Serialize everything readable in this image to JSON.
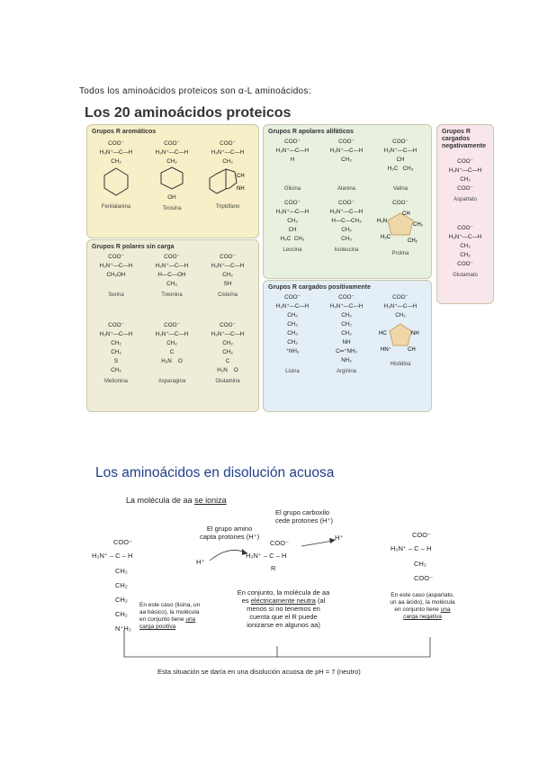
{
  "intro": "Todos los aminoácidos proteicos son α-L aminoácidos:",
  "figure1": {
    "title": "Los 20 aminoácidos proteicos",
    "groups": {
      "aromatic": {
        "title": "Grupos R aromáticos",
        "names": [
          "Fenilalanina",
          "Tirosina",
          "Triptófano"
        ]
      },
      "polar": {
        "title": "Grupos R polares sin carga",
        "names": [
          "Serina",
          "Treonina",
          "Cisteína",
          "Metionina",
          "Asparagina",
          "Glutamina"
        ]
      },
      "apolar": {
        "title": "Grupos R apolares alifáticos",
        "names": [
          "Glicina",
          "Alanina",
          "Valina",
          "Leucina",
          "Isoleucina",
          "Prolina"
        ]
      },
      "positive": {
        "title": "Grupos R cargados positivamente",
        "names": [
          "Lisina",
          "Arginina",
          "Histidina"
        ]
      },
      "negative": {
        "title": "Grupos R cargados negativamente",
        "names": [
          "Aspartato",
          "Glutamato"
        ]
      }
    },
    "formula": {
      "coo": "COO⁻",
      "amine": "H₃N⁺—C—H"
    }
  },
  "figure2": {
    "title": "Los aminoácidos en disolución acuosa",
    "subtitle_prefix": "La molécula de aa ",
    "subtitle_emph": "se ioniza",
    "carboxyl_label": "El grupo carboxilo\ncede protones (H⁺)",
    "amino_label": "El grupo amino\ncapta protones (H⁺)",
    "h_plus": "H⁺",
    "center_R": "R",
    "left_coo": "COO⁻",
    "left_amine": "H₃N⁺ – C – H",
    "left_chain": [
      "CH₂",
      "CH₂",
      "CH₂",
      "CH₂",
      "N⁺H₃"
    ],
    "right_coo": "COO⁻",
    "right_amine": "H₃N⁺ – C – H",
    "right_chain": [
      "CH₂",
      "COO⁻"
    ],
    "note_left": {
      "text": "En este caso (lisina, un aa básico), la molécula en conjunto tiene ",
      "emph": "una carga positiva"
    },
    "note_center": {
      "pre": "En conjunto, la molécula de aa es ",
      "emph1": "eléctricamente neutra",
      "post": " (al menos si no tenemos en cuenta que el R puede ionizarse en algunos aa)"
    },
    "note_right": {
      "text": "En este caso (aspartato, un aa ácido), la molécula en conjunto tiene ",
      "emph": "una carga negativa"
    },
    "footer": "Esta situación se daría en una disolución acuosa de pH = 7 (neutro)"
  },
  "colors": {
    "aromatic": "#f6efc8",
    "polar": "#efedd8",
    "apolar": "#e8f0e0",
    "positive": "#e3eef6",
    "negative": "#f8e6ec",
    "title_blue": "#1f3f8a"
  }
}
